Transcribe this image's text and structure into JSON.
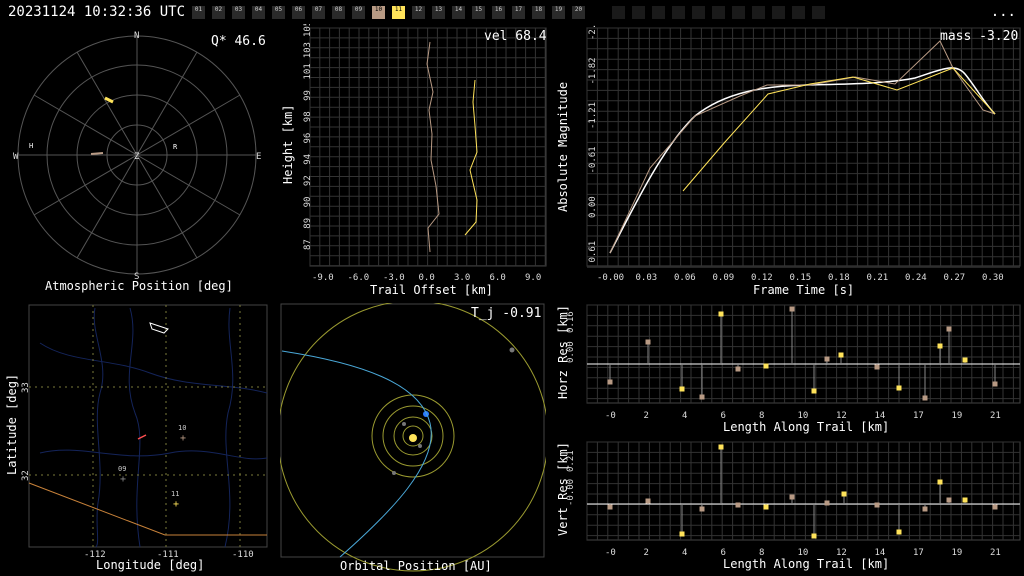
{
  "header": {
    "timestamp": "20231124 10:32:36 UTC",
    "menu_label": "...",
    "stations": [
      "01",
      "02",
      "03",
      "04",
      "05",
      "06",
      "07",
      "08",
      "09",
      "10",
      "11",
      "12",
      "13",
      "14",
      "15",
      "16",
      "17",
      "18",
      "19",
      "20"
    ],
    "selected_stations": [
      "10",
      "11"
    ],
    "colors": {
      "station10": "#b89a84",
      "station11": "#ffe35a"
    }
  },
  "sky": {
    "annotation": "Q* 46.6",
    "caption": "Atmospheric Position [deg]",
    "cardinals": {
      "n": "N",
      "s": "S",
      "e": "E",
      "w": "W",
      "z": "Z"
    },
    "marker_left": "H",
    "marker_right": "R"
  },
  "height_plot": {
    "annotation": "vel 68.4",
    "xlabel": "Trail Offset [km]",
    "ylabel": "Height [km]",
    "xticks": [
      "-9.0",
      "-6.0",
      "-3.0",
      "0.0",
      "3.0",
      "6.0",
      "9.0"
    ],
    "yticks": [
      "87",
      "89",
      "90",
      "92",
      "94",
      "96",
      "98",
      "99",
      "101",
      "103",
      "105"
    ]
  },
  "lightcurve": {
    "annotation": "mass -3.20",
    "xlabel": "Frame Time [s]",
    "ylabel": "Absolute Magnitude",
    "xticks": [
      "-0.00",
      "0.03",
      "0.06",
      "0.09",
      "0.12",
      "0.15",
      "0.18",
      "0.21",
      "0.24",
      "0.27",
      "0.30"
    ],
    "yticks": [
      "-2.43",
      "-1.82",
      "-1.21",
      "-0.61",
      "0.00",
      "0.61"
    ]
  },
  "map": {
    "xlabel": "Longitude [deg]",
    "ylabel": "Latitude [deg]",
    "xticks": [
      "-112",
      "-111",
      "-110"
    ],
    "yticks": [
      "33",
      "32"
    ],
    "station_labels": [
      "10",
      "09",
      "11"
    ]
  },
  "orbit": {
    "annotation": "T_j -0.91",
    "caption": "Orbital Position [AU]"
  },
  "horz_res": {
    "xlabel": "Length Along Trail [km]",
    "ylabel": "Horz Res [km]",
    "xticks": [
      "-0",
      "2",
      "4",
      "6",
      "8",
      "10",
      "12",
      "14",
      "17",
      "19",
      "21"
    ],
    "yticks": [
      "0.16",
      "0.00"
    ]
  },
  "vert_res": {
    "xlabel": "Length Along Trail [km]",
    "ylabel": "Vert Res [km]",
    "xticks": [
      "-0",
      "2",
      "4",
      "6",
      "8",
      "10",
      "12",
      "14",
      "17",
      "19",
      "21"
    ],
    "yticks": [
      "0.21",
      "-0.00"
    ]
  }
}
